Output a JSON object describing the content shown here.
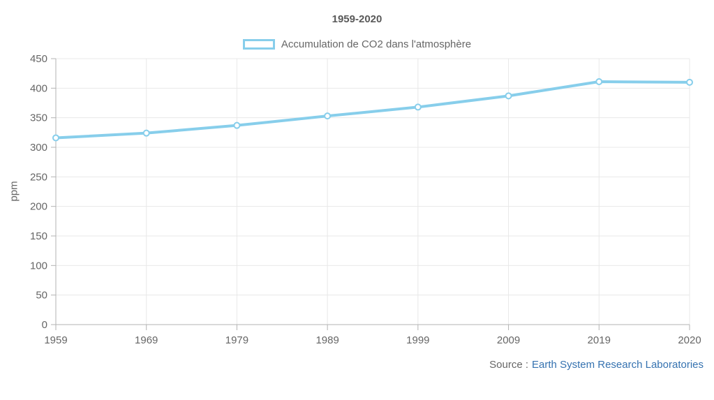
{
  "chart": {
    "title": "1959-2020",
    "legend_label": "Accumulation de CO2 dans l'atmosphère",
    "y_axis_label": "ppm",
    "source_prefix": "Source :",
    "source_link": "Earth System Research Laboratories",
    "colors": {
      "line": "#87CEEB",
      "marker_fill": "#ffffff",
      "grid": "#e8e8e8",
      "axis": "#b3b3b3",
      "text": "#666666",
      "title": "#595959",
      "link": "#3572b0"
    }
  },
  "chart_data": {
    "type": "line",
    "categories": [
      "1959",
      "1969",
      "1979",
      "1989",
      "1999",
      "2009",
      "2019",
      "2020"
    ],
    "series": [
      {
        "name": "Accumulation de CO2 dans l'atmosphère",
        "values": [
          316,
          324,
          337,
          353,
          368,
          387,
          411,
          410
        ]
      }
    ],
    "title": "1959-2020",
    "xlabel": "",
    "ylabel": "ppm",
    "ylim": [
      0,
      450
    ],
    "y_ticks": [
      0,
      50,
      100,
      150,
      200,
      250,
      300,
      350,
      400,
      450
    ],
    "grid": true,
    "legend_position": "top"
  }
}
